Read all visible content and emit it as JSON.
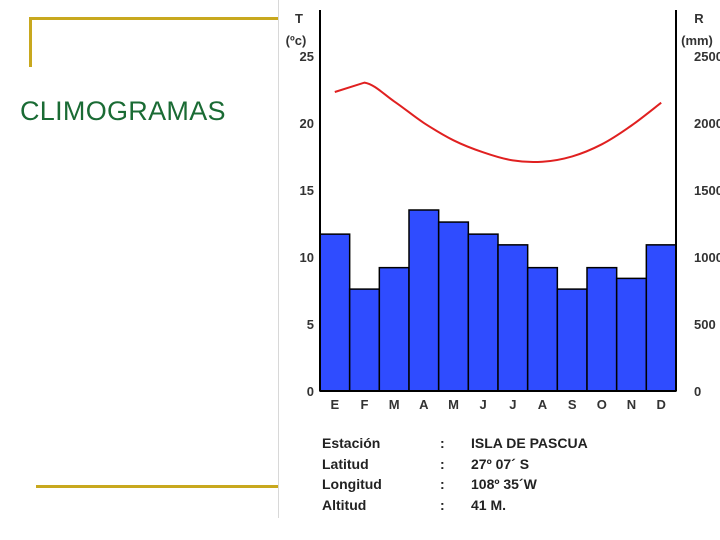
{
  "slide": {
    "title": "CLIMOGRAMAS",
    "colors": {
      "title": "#1a6b34",
      "decoration": "#c8a81e"
    }
  },
  "chart_data": {
    "type": "bar",
    "categories": [
      "E",
      "F",
      "M",
      "A",
      "M",
      "J",
      "J",
      "A",
      "S",
      "O",
      "N",
      "D"
    ],
    "series": [
      {
        "kind": "bar",
        "axis": "right",
        "values": [
          117,
          76,
          92,
          135,
          126,
          117,
          109,
          92,
          76,
          92,
          84,
          109
        ],
        "color": "#2f4cff"
      },
      {
        "kind": "line",
        "axis": "left",
        "values": [
          22.3,
          23.0,
          21.6,
          20.0,
          18.7,
          17.8,
          17.2,
          17.1,
          17.5,
          18.4,
          19.8,
          21.5
        ],
        "color": "#e02020"
      }
    ],
    "left_axis": {
      "label_line1": "T",
      "label_line2": "(ºc)",
      "ticks": [
        "0",
        "5",
        "10",
        "15",
        "20",
        "25"
      ],
      "range": [
        0,
        27
      ]
    },
    "right_axis": {
      "label_line1": "R",
      "label_line2": "(mm)",
      "ticks": [
        "0",
        "500",
        "1000",
        "1500",
        "2000",
        "2500"
      ],
      "range": [
        0,
        270
      ]
    },
    "grid": false,
    "legend": "none"
  },
  "station": [
    {
      "label": "Estación",
      "sep": ":",
      "value": "ISLA DE PASCUA"
    },
    {
      "label": "Latitud",
      "sep": ":",
      "value": "27º 07´ S"
    },
    {
      "label": "Longitud",
      "sep": ":",
      "value": "108º 35´W"
    },
    {
      "label": "Altitud",
      "sep": ":",
      "value": "41 M."
    }
  ]
}
